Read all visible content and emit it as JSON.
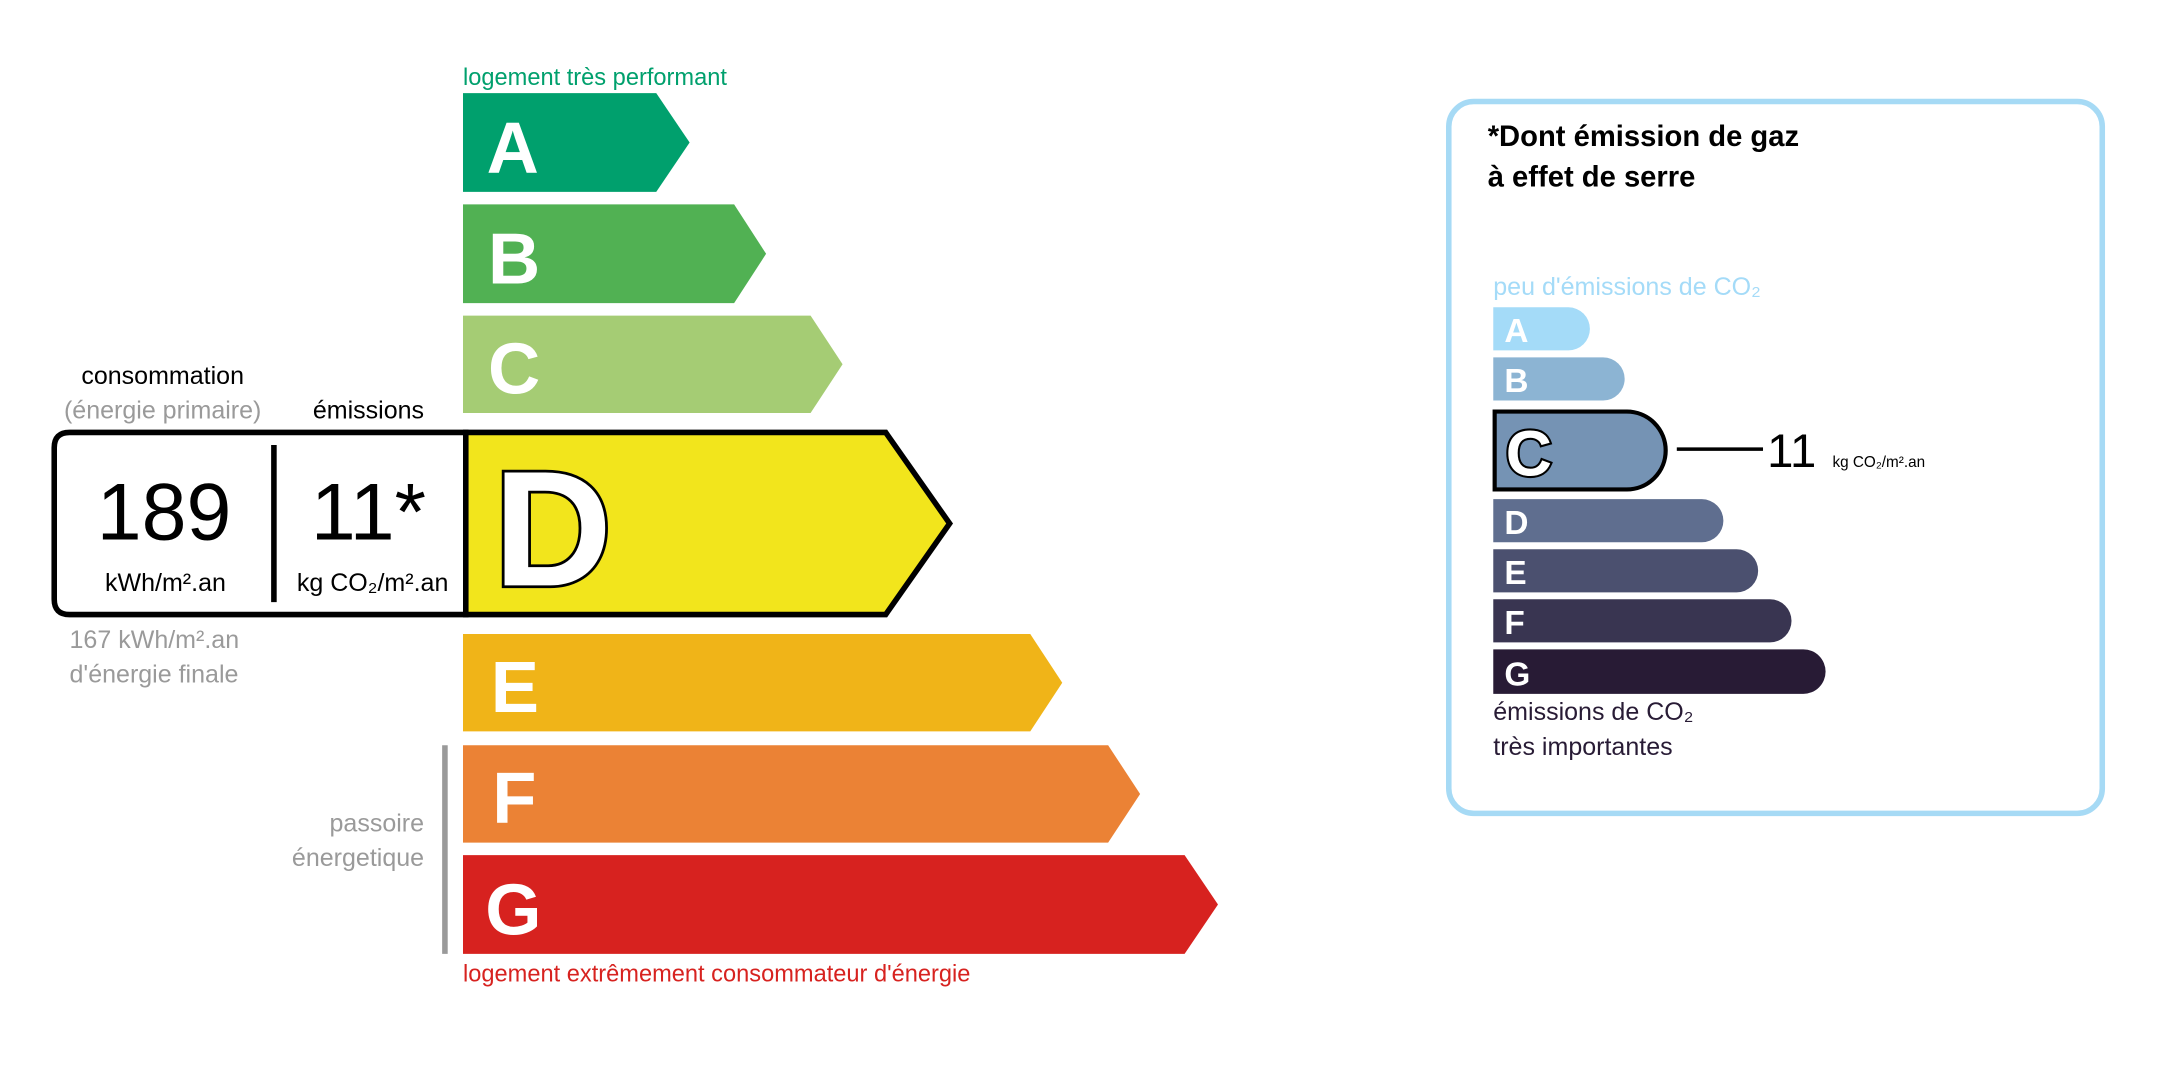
{
  "energy": {
    "top_label": "logement très performant",
    "bottom_label": "logement extrêmement consommateur d'énergie",
    "passoire": [
      "passoire",
      "énergetique"
    ],
    "classes": [
      "A",
      "B",
      "C",
      "D",
      "E",
      "F",
      "G"
    ],
    "colors": [
      "#00a06d",
      "#51b153",
      "#a5cc74",
      "#f2e51c",
      "#f0b418",
      "#eb8235",
      "#d7221f"
    ],
    "current_class": "D",
    "consumption_header": "consommation",
    "consumption_sub": "(énergie primaire)",
    "emissions_header": "émissions",
    "consumption_value": "189",
    "consumption_unit": "kWh/m².an",
    "emissions_value": "11*",
    "emissions_unit": "kg CO₂/m².an",
    "final_energy_value": "167 kWh/m².an",
    "final_energy_label": "d'énergie finale"
  },
  "ges": {
    "title_line1": "*Dont émission de gaz",
    "title_line2": "à effet de serre",
    "top_label": "peu d'émissions de CO₂",
    "bottom_label_line1": "émissions de CO₂",
    "bottom_label_line2": "très importantes",
    "classes": [
      "A",
      "B",
      "C",
      "D",
      "E",
      "F",
      "G"
    ],
    "colors": [
      "#a4dbf8",
      "#8cb4d3",
      "#7593b4",
      "#5f6e8f",
      "#4b506f",
      "#393551",
      "#281b35"
    ],
    "current_class": "C",
    "value": "11",
    "unit": "kg CO₂/m².an",
    "border_color": "#a6daf5"
  }
}
